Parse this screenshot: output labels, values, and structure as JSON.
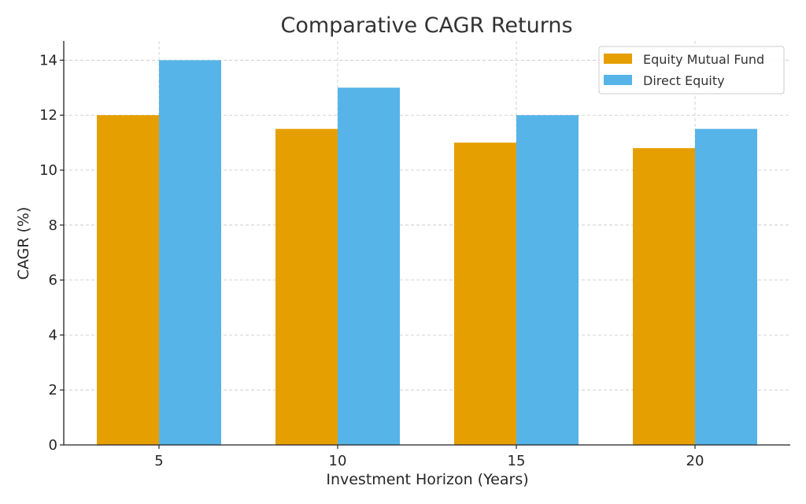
{
  "chart_data": {
    "type": "bar",
    "title": "Comparative CAGR Returns",
    "xlabel": "Investment Horizon (Years)",
    "ylabel": "CAGR (%)",
    "categories": [
      "5",
      "10",
      "15",
      "20"
    ],
    "yticks": [
      "0",
      "2",
      "4",
      "6",
      "8",
      "10",
      "12",
      "14"
    ],
    "ylim": [
      0,
      14.7
    ],
    "grid": true,
    "legend_position": "top-right",
    "series": [
      {
        "name": "Equity Mutual Fund",
        "color": "#E69F00",
        "values": [
          12,
          11.5,
          11,
          10.8
        ]
      },
      {
        "name": "Direct Equity",
        "color": "#56B4E9",
        "values": [
          14,
          13,
          12,
          11.5
        ]
      }
    ]
  }
}
